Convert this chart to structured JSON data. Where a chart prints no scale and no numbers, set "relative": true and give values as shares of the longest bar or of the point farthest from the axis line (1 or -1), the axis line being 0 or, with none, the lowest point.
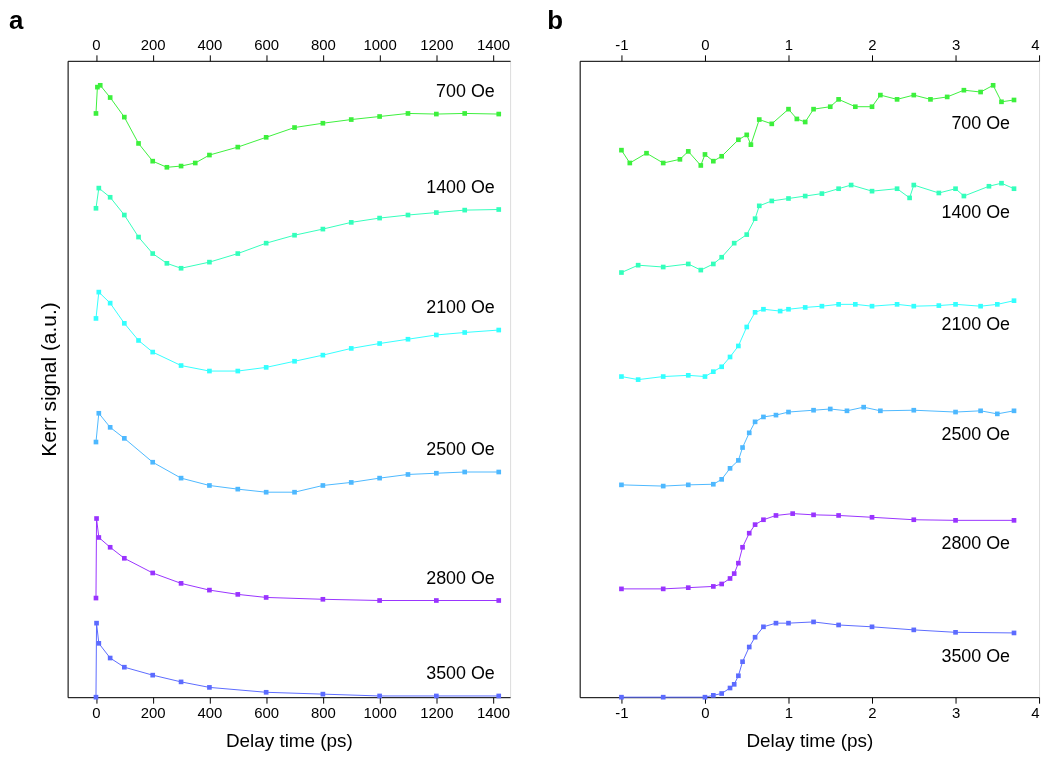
{
  "chart_data": [
    {
      "type": "line",
      "title": "a",
      "xlabel": "Delay time (ps)",
      "ylabel": "Kerr signal (a.u.)",
      "relative": true,
      "marker": "square",
      "legend": false,
      "grid": false,
      "tick_labels": "x",
      "xlim": [
        -100,
        1460
      ],
      "xticks": [
        0,
        200,
        400,
        600,
        800,
        1000,
        1200,
        1400
      ],
      "x2lim": [
        -100,
        1460
      ],
      "x2ticks": [
        0,
        200,
        400,
        600,
        800,
        1000,
        1200,
        1400
      ],
      "series": [
        {
          "name": "700 Oe",
          "color": "#3cf03c",
          "x": [
            0,
            5,
            15,
            50,
            100,
            150,
            200,
            250,
            300,
            350,
            400,
            500,
            600,
            700,
            800,
            900,
            1000,
            1100,
            1200,
            1300,
            1420
          ],
          "values": [
            0.954,
            0.997,
            1.0,
            0.98,
            0.948,
            0.905,
            0.876,
            0.866,
            0.868,
            0.873,
            0.886,
            0.899,
            0.915,
            0.931,
            0.938,
            0.944,
            0.949,
            0.954,
            0.953,
            0.954,
            0.953
          ]
        },
        {
          "name": "1400 Oe",
          "color": "#33ffbb",
          "x": [
            0,
            10,
            50,
            100,
            150,
            200,
            250,
            300,
            400,
            500,
            600,
            700,
            800,
            900,
            1000,
            1100,
            1200,
            1300,
            1420
          ],
          "values": [
            0.799,
            0.832,
            0.817,
            0.788,
            0.752,
            0.725,
            0.709,
            0.701,
            0.711,
            0.725,
            0.742,
            0.755,
            0.765,
            0.776,
            0.783,
            0.788,
            0.792,
            0.796,
            0.797
          ]
        },
        {
          "name": "2100 Oe",
          "color": "#33ffff",
          "x": [
            0,
            10,
            50,
            100,
            150,
            200,
            300,
            400,
            500,
            600,
            700,
            800,
            900,
            1000,
            1100,
            1200,
            1300,
            1420
          ],
          "values": [
            0.619,
            0.662,
            0.644,
            0.611,
            0.583,
            0.564,
            0.542,
            0.533,
            0.533,
            0.539,
            0.549,
            0.559,
            0.57,
            0.578,
            0.585,
            0.592,
            0.596,
            0.6
          ]
        },
        {
          "name": "2500 Oe",
          "color": "#4db8ff",
          "x": [
            0,
            10,
            50,
            100,
            200,
            300,
            400,
            500,
            600,
            700,
            800,
            900,
            1000,
            1100,
            1200,
            1300,
            1420
          ],
          "values": [
            0.417,
            0.464,
            0.441,
            0.423,
            0.384,
            0.358,
            0.346,
            0.34,
            0.335,
            0.335,
            0.346,
            0.351,
            0.358,
            0.364,
            0.366,
            0.368,
            0.368
          ]
        },
        {
          "name": "2800 Oe",
          "color": "#9933ff",
          "x": [
            0,
            2,
            10,
            50,
            100,
            200,
            300,
            400,
            500,
            600,
            800,
            1000,
            1200,
            1420
          ],
          "values": [
            0.162,
            0.292,
            0.261,
            0.245,
            0.227,
            0.203,
            0.186,
            0.175,
            0.168,
            0.163,
            0.16,
            0.158,
            0.158,
            0.158
          ]
        },
        {
          "name": "3500 Oe",
          "color": "#5c6bff",
          "x": [
            0,
            2,
            10,
            50,
            100,
            200,
            300,
            400,
            600,
            800,
            1000,
            1200,
            1420
          ],
          "values": [
            0.0,
            0.121,
            0.088,
            0.064,
            0.049,
            0.036,
            0.025,
            0.016,
            0.008,
            0.005,
            0.002,
            0.002,
            0.002
          ]
        }
      ]
    },
    {
      "type": "line",
      "title": "b",
      "xlabel": "Delay time (ps)",
      "relative": true,
      "marker": "square",
      "legend": false,
      "grid": false,
      "tick_labels": "x",
      "xlim": [
        -1.5,
        4
      ],
      "xticks": [
        -1,
        0,
        1,
        2,
        3,
        4
      ],
      "x2lim": [
        -1.5,
        4
      ],
      "x2ticks": [
        -1,
        0,
        1,
        2,
        3,
        4
      ],
      "series": [
        {
          "name": "700 Oe",
          "color": "#3cf03c",
          "x": [
            -1,
            -0.9,
            -0.7,
            -0.5,
            -0.3,
            -0.2,
            -0.05,
            0.0,
            0.1,
            0.2,
            0.4,
            0.5,
            0.55,
            0.65,
            0.8,
            1.0,
            1.1,
            1.2,
            1.3,
            1.5,
            1.6,
            1.8,
            2.0,
            2.1,
            2.3,
            2.5,
            2.7,
            2.9,
            3.1,
            3.3,
            3.45,
            3.55,
            3.7
          ],
          "values": [
            0.894,
            0.873,
            0.889,
            0.873,
            0.879,
            0.892,
            0.869,
            0.887,
            0.876,
            0.884,
            0.911,
            0.919,
            0.903,
            0.944,
            0.937,
            0.961,
            0.945,
            0.94,
            0.961,
            0.965,
            0.977,
            0.965,
            0.965,
            0.984,
            0.977,
            0.984,
            0.977,
            0.981,
            0.992,
            0.989,
            1.0,
            0.973,
            0.976
          ]
        },
        {
          "name": "1400 Oe",
          "color": "#33ffbb",
          "x": [
            -1,
            -0.8,
            -0.5,
            -0.2,
            -0.05,
            0.1,
            0.2,
            0.35,
            0.5,
            0.6,
            0.65,
            0.8,
            1.0,
            1.2,
            1.4,
            1.6,
            1.75,
            2.0,
            2.3,
            2.45,
            2.5,
            2.8,
            3.0,
            3.1,
            3.4,
            3.55,
            3.7
          ],
          "values": [
            0.694,
            0.706,
            0.703,
            0.708,
            0.698,
            0.708,
            0.719,
            0.742,
            0.756,
            0.782,
            0.803,
            0.811,
            0.815,
            0.819,
            0.823,
            0.831,
            0.837,
            0.827,
            0.831,
            0.816,
            0.837,
            0.824,
            0.831,
            0.819,
            0.835,
            0.84,
            0.831
          ]
        },
        {
          "name": "2100 Oe",
          "color": "#33ffff",
          "x": [
            -1,
            -0.8,
            -0.5,
            -0.2,
            0.0,
            0.1,
            0.2,
            0.3,
            0.4,
            0.5,
            0.6,
            0.7,
            0.9,
            1.0,
            1.2,
            1.4,
            1.6,
            1.8,
            2.0,
            2.3,
            2.5,
            2.8,
            3.0,
            3.3,
            3.5,
            3.7
          ],
          "values": [
            0.524,
            0.519,
            0.524,
            0.526,
            0.524,
            0.532,
            0.54,
            0.556,
            0.574,
            0.605,
            0.629,
            0.634,
            0.631,
            0.634,
            0.637,
            0.639,
            0.642,
            0.642,
            0.639,
            0.642,
            0.639,
            0.64,
            0.642,
            0.639,
            0.642,
            0.648
          ]
        },
        {
          "name": "2500 Oe",
          "color": "#4db8ff",
          "x": [
            -1,
            -0.5,
            -0.2,
            0.1,
            0.2,
            0.3,
            0.4,
            0.45,
            0.53,
            0.6,
            0.7,
            0.85,
            1.0,
            1.3,
            1.5,
            1.7,
            1.9,
            2.1,
            2.5,
            3.0,
            3.3,
            3.5,
            3.7
          ],
          "values": [
            0.347,
            0.345,
            0.347,
            0.348,
            0.356,
            0.374,
            0.387,
            0.408,
            0.432,
            0.45,
            0.458,
            0.461,
            0.466,
            0.469,
            0.471,
            0.468,
            0.474,
            0.468,
            0.469,
            0.466,
            0.468,
            0.463,
            0.468
          ]
        },
        {
          "name": "2800 Oe",
          "color": "#9933ff",
          "x": [
            -1,
            -0.5,
            -0.2,
            0.1,
            0.2,
            0.3,
            0.35,
            0.4,
            0.45,
            0.53,
            0.6,
            0.7,
            0.85,
            1.05,
            1.3,
            1.6,
            2.0,
            2.5,
            3.0,
            3.7
          ],
          "values": [
            0.177,
            0.177,
            0.179,
            0.181,
            0.185,
            0.194,
            0.202,
            0.219,
            0.245,
            0.268,
            0.282,
            0.29,
            0.297,
            0.3,
            0.298,
            0.297,
            0.294,
            0.29,
            0.289,
            0.289
          ]
        },
        {
          "name": "3500 Oe",
          "color": "#5c6bff",
          "x": [
            -1,
            -0.5,
            0.0,
            0.1,
            0.2,
            0.3,
            0.35,
            0.4,
            0.45,
            0.53,
            0.6,
            0.7,
            0.85,
            1.0,
            1.3,
            1.6,
            2.0,
            2.5,
            3.0,
            3.7
          ],
          "values": [
            0.0,
            0.0,
            0.0,
            0.003,
            0.006,
            0.015,
            0.021,
            0.035,
            0.058,
            0.082,
            0.098,
            0.115,
            0.121,
            0.121,
            0.123,
            0.118,
            0.115,
            0.11,
            0.106,
            0.105
          ]
        }
      ]
    }
  ]
}
